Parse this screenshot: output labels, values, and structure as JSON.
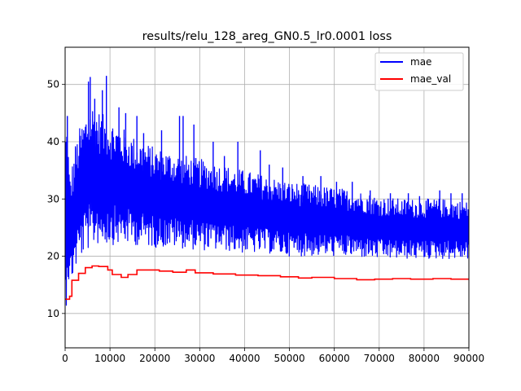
{
  "chart_data": {
    "type": "line",
    "title": "results/relu_128_areg_GN0.5_lr0.0001 loss",
    "xlabel": "",
    "ylabel": "",
    "xlim": [
      0,
      90000
    ],
    "ylim": [
      4,
      56.5
    ],
    "x_ticks": [
      0,
      10000,
      20000,
      30000,
      40000,
      50000,
      60000,
      70000,
      80000,
      90000
    ],
    "x_tick_labels": [
      "0",
      "10000",
      "20000",
      "30000",
      "40000",
      "50000",
      "60000",
      "70000",
      "80000",
      "90000"
    ],
    "y_ticks": [
      10,
      20,
      30,
      40,
      50
    ],
    "y_tick_labels": [
      "10",
      "20",
      "30",
      "40",
      "50"
    ],
    "grid": true,
    "legend_position": "top-right",
    "series": [
      {
        "name": "mae",
        "color": "#0000ff",
        "style": "noisy-band",
        "x": [
          0,
          500,
          1000,
          2000,
          3000,
          4000,
          5000,
          6000,
          7000,
          8000,
          10000,
          12000,
          15000,
          20000,
          25000,
          30000,
          35000,
          40000,
          45000,
          50000,
          55000,
          60000,
          65000,
          70000,
          75000,
          80000,
          85000,
          90000
        ],
        "upper": [
          44,
          44,
          34,
          38,
          42,
          44,
          46,
          47,
          46,
          45,
          44,
          43,
          41,
          39,
          38,
          37,
          36,
          35,
          34,
          33,
          32.5,
          32,
          31.5,
          30.5,
          30,
          30,
          30,
          29.5
        ],
        "lower": [
          6,
          16,
          14,
          17,
          19,
          20,
          21,
          21.5,
          22,
          22,
          22,
          22,
          22,
          21.5,
          21.5,
          21,
          21,
          20.5,
          20.5,
          20,
          20,
          20,
          19.8,
          19.5,
          19.5,
          19.5,
          19.5,
          19.5
        ],
        "spikes": [
          {
            "x": 500,
            "y": 44.5
          },
          {
            "x": 2300,
            "y": 39.2
          },
          {
            "x": 5200,
            "y": 50.5
          },
          {
            "x": 5600,
            "y": 51.3
          },
          {
            "x": 6600,
            "y": 47.5
          },
          {
            "x": 8300,
            "y": 49
          },
          {
            "x": 9200,
            "y": 51.5
          },
          {
            "x": 12000,
            "y": 46
          },
          {
            "x": 13500,
            "y": 45
          },
          {
            "x": 16000,
            "y": 44.5
          },
          {
            "x": 17500,
            "y": 41.5
          },
          {
            "x": 21500,
            "y": 42
          },
          {
            "x": 25500,
            "y": 44.5
          },
          {
            "x": 26300,
            "y": 44.5
          },
          {
            "x": 28700,
            "y": 43
          },
          {
            "x": 33000,
            "y": 40
          },
          {
            "x": 35500,
            "y": 37.5
          },
          {
            "x": 38500,
            "y": 40
          },
          {
            "x": 43500,
            "y": 38.5
          },
          {
            "x": 45500,
            "y": 36
          },
          {
            "x": 48500,
            "y": 35.5
          },
          {
            "x": 53000,
            "y": 34
          },
          {
            "x": 57000,
            "y": 34
          },
          {
            "x": 60500,
            "y": 33
          },
          {
            "x": 64000,
            "y": 33
          },
          {
            "x": 68000,
            "y": 31.5
          },
          {
            "x": 72500,
            "y": 31
          },
          {
            "x": 76500,
            "y": 31
          },
          {
            "x": 79000,
            "y": 30.5
          },
          {
            "x": 83500,
            "y": 31.5
          },
          {
            "x": 86000,
            "y": 31
          },
          {
            "x": 88500,
            "y": 31
          }
        ]
      },
      {
        "name": "mae_val",
        "color": "#ff0000",
        "style": "steps",
        "x": [
          0,
          1000,
          1500,
          3000,
          4500,
          6000,
          7500,
          9500,
          10500,
          12500,
          14000,
          16000,
          21000,
          24000,
          27000,
          29000,
          33000,
          38000,
          43000,
          48000,
          52000,
          55000,
          60000,
          65000,
          69000,
          73000,
          77000,
          82000,
          86000,
          90000
        ],
        "values": [
          12.5,
          13.0,
          15.8,
          17.0,
          18.0,
          18.3,
          18.2,
          17.6,
          16.8,
          16.3,
          16.8,
          17.6,
          17.4,
          17.2,
          17.6,
          17.1,
          16.9,
          16.7,
          16.6,
          16.4,
          16.2,
          16.3,
          16.1,
          15.9,
          16.0,
          16.1,
          16.0,
          16.1,
          16.0,
          16.1
        ]
      }
    ]
  }
}
